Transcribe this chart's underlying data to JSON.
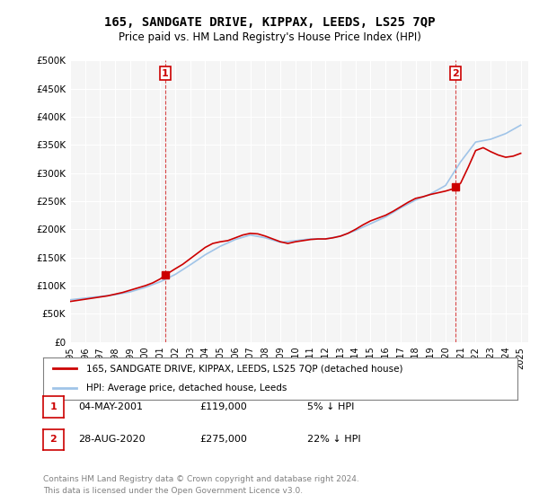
{
  "title": "165, SANDGATE DRIVE, KIPPAX, LEEDS, LS25 7QP",
  "subtitle": "Price paid vs. HM Land Registry's House Price Index (HPI)",
  "ylabel": "",
  "ylim": [
    0,
    500000
  ],
  "yticks": [
    0,
    50000,
    100000,
    150000,
    200000,
    250000,
    300000,
    350000,
    400000,
    450000,
    500000
  ],
  "ytick_labels": [
    "£0",
    "£50K",
    "£100K",
    "£150K",
    "£200K",
    "£250K",
    "£300K",
    "£350K",
    "£400K",
    "£450K",
    "£500K"
  ],
  "hpi_color": "#a0c4e8",
  "price_color": "#cc0000",
  "marker1_color": "#cc0000",
  "marker2_color": "#cc0000",
  "background_color": "#ffffff",
  "plot_bg_color": "#f5f5f5",
  "grid_color": "#ffffff",
  "sale1_year": 2001.34,
  "sale1_price": 119000,
  "sale2_year": 2020.66,
  "sale2_price": 275000,
  "legend_label_price": "165, SANDGATE DRIVE, KIPPAX, LEEDS, LS25 7QP (detached house)",
  "legend_label_hpi": "HPI: Average price, detached house, Leeds",
  "table_row1": [
    "1",
    "04-MAY-2001",
    "£119,000",
    "5% ↓ HPI"
  ],
  "table_row2": [
    "2",
    "28-AUG-2020",
    "£275,000",
    "22% ↓ HPI"
  ],
  "footer": "Contains HM Land Registry data © Crown copyright and database right 2024.\nThis data is licensed under the Open Government Licence v3.0.",
  "x_years": [
    1995,
    1996,
    1997,
    1998,
    1999,
    2000,
    2001,
    2002,
    2003,
    2004,
    2005,
    2006,
    2007,
    2008,
    2009,
    2010,
    2011,
    2012,
    2013,
    2014,
    2015,
    2016,
    2017,
    2018,
    2019,
    2020,
    2021,
    2022,
    2023,
    2024,
    2025
  ],
  "hpi_values": [
    75000,
    78000,
    81000,
    84000,
    89000,
    97000,
    107000,
    120000,
    137000,
    155000,
    170000,
    182000,
    190000,
    185000,
    177000,
    180000,
    183000,
    183000,
    188000,
    198000,
    210000,
    222000,
    238000,
    252000,
    263000,
    278000,
    320000,
    355000,
    360000,
    370000,
    385000
  ],
  "price_values_x": [
    1995.0,
    1995.5,
    1996.0,
    1996.5,
    1997.0,
    1997.5,
    1998.0,
    1998.5,
    1999.0,
    1999.5,
    2000.0,
    2000.5,
    2001.0,
    2001.34,
    2001.7,
    2002.0,
    2002.5,
    2003.0,
    2003.5,
    2004.0,
    2004.5,
    2005.0,
    2005.5,
    2006.0,
    2006.5,
    2007.0,
    2007.5,
    2008.0,
    2008.5,
    2009.0,
    2009.5,
    2010.0,
    2010.5,
    2011.0,
    2011.5,
    2012.0,
    2012.5,
    2013.0,
    2013.5,
    2014.0,
    2014.5,
    2015.0,
    2015.5,
    2016.0,
    2016.5,
    2017.0,
    2017.5,
    2018.0,
    2018.5,
    2019.0,
    2019.5,
    2020.0,
    2020.5,
    2020.66,
    2021.0,
    2021.5,
    2022.0,
    2022.5,
    2023.0,
    2023.5,
    2024.0,
    2024.5,
    2025.0
  ],
  "price_values_y": [
    72000,
    74000,
    76000,
    78000,
    80000,
    82000,
    85000,
    88000,
    92000,
    96000,
    100000,
    105000,
    112000,
    119000,
    125000,
    130000,
    138000,
    148000,
    158000,
    168000,
    175000,
    178000,
    180000,
    185000,
    190000,
    193000,
    192000,
    188000,
    183000,
    178000,
    175000,
    178000,
    180000,
    182000,
    183000,
    183000,
    185000,
    188000,
    193000,
    200000,
    208000,
    215000,
    220000,
    225000,
    232000,
    240000,
    248000,
    255000,
    258000,
    262000,
    265000,
    268000,
    272000,
    275000,
    282000,
    310000,
    340000,
    345000,
    338000,
    332000,
    328000,
    330000,
    335000
  ]
}
